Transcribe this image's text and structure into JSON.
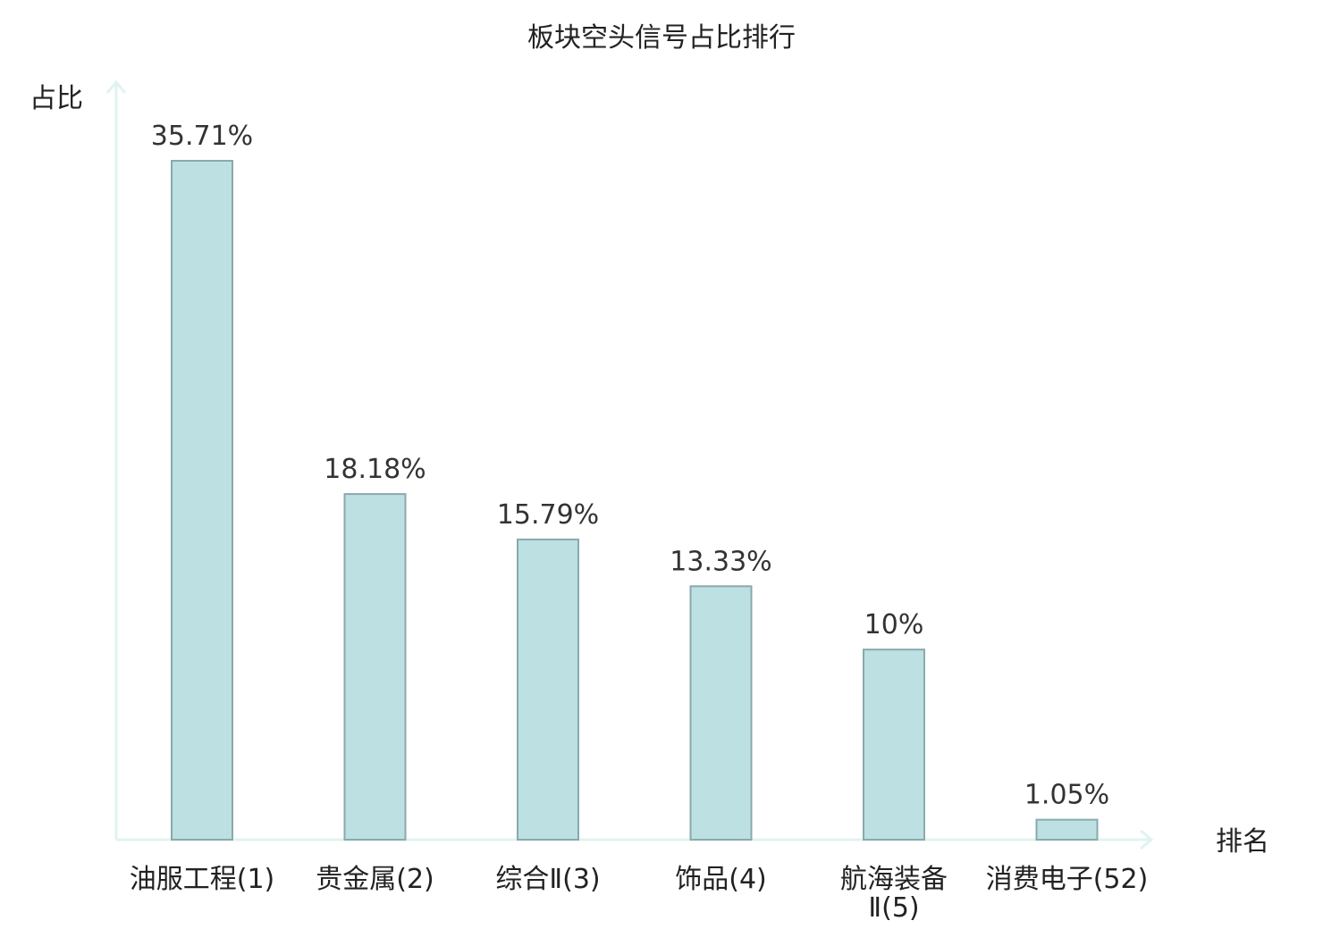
{
  "chart_data": {
    "type": "bar",
    "title": "板块空头信号占比排行",
    "ylabel": "占比",
    "xlabel": "排名",
    "ylim": [
      0,
      40
    ],
    "grid": false,
    "categories": [
      {
        "name": "油服工程",
        "rank": "(1)"
      },
      {
        "name": "贵金属",
        "rank": "(2)"
      },
      {
        "name": "综合Ⅱ",
        "rank": "(3)"
      },
      {
        "name": "饰品",
        "rank": "(4)"
      },
      {
        "name": "航海装备Ⅱ",
        "rank": "(5)"
      },
      {
        "name": "消费电子",
        "rank": "(52)",
        "highlight": true
      }
    ],
    "values": [
      35.71,
      18.18,
      15.79,
      13.33,
      10,
      1.05
    ],
    "value_labels": [
      "35.71%",
      "18.18%",
      "15.79%",
      "13.33%",
      "10%",
      "1.05%"
    ],
    "colors": {
      "bar_fill": "#bde0e3",
      "bar_stroke": "#8aa9ab",
      "axis": "#e0f3f1",
      "highlight_text": "#e0131a",
      "text": "#222222"
    }
  }
}
